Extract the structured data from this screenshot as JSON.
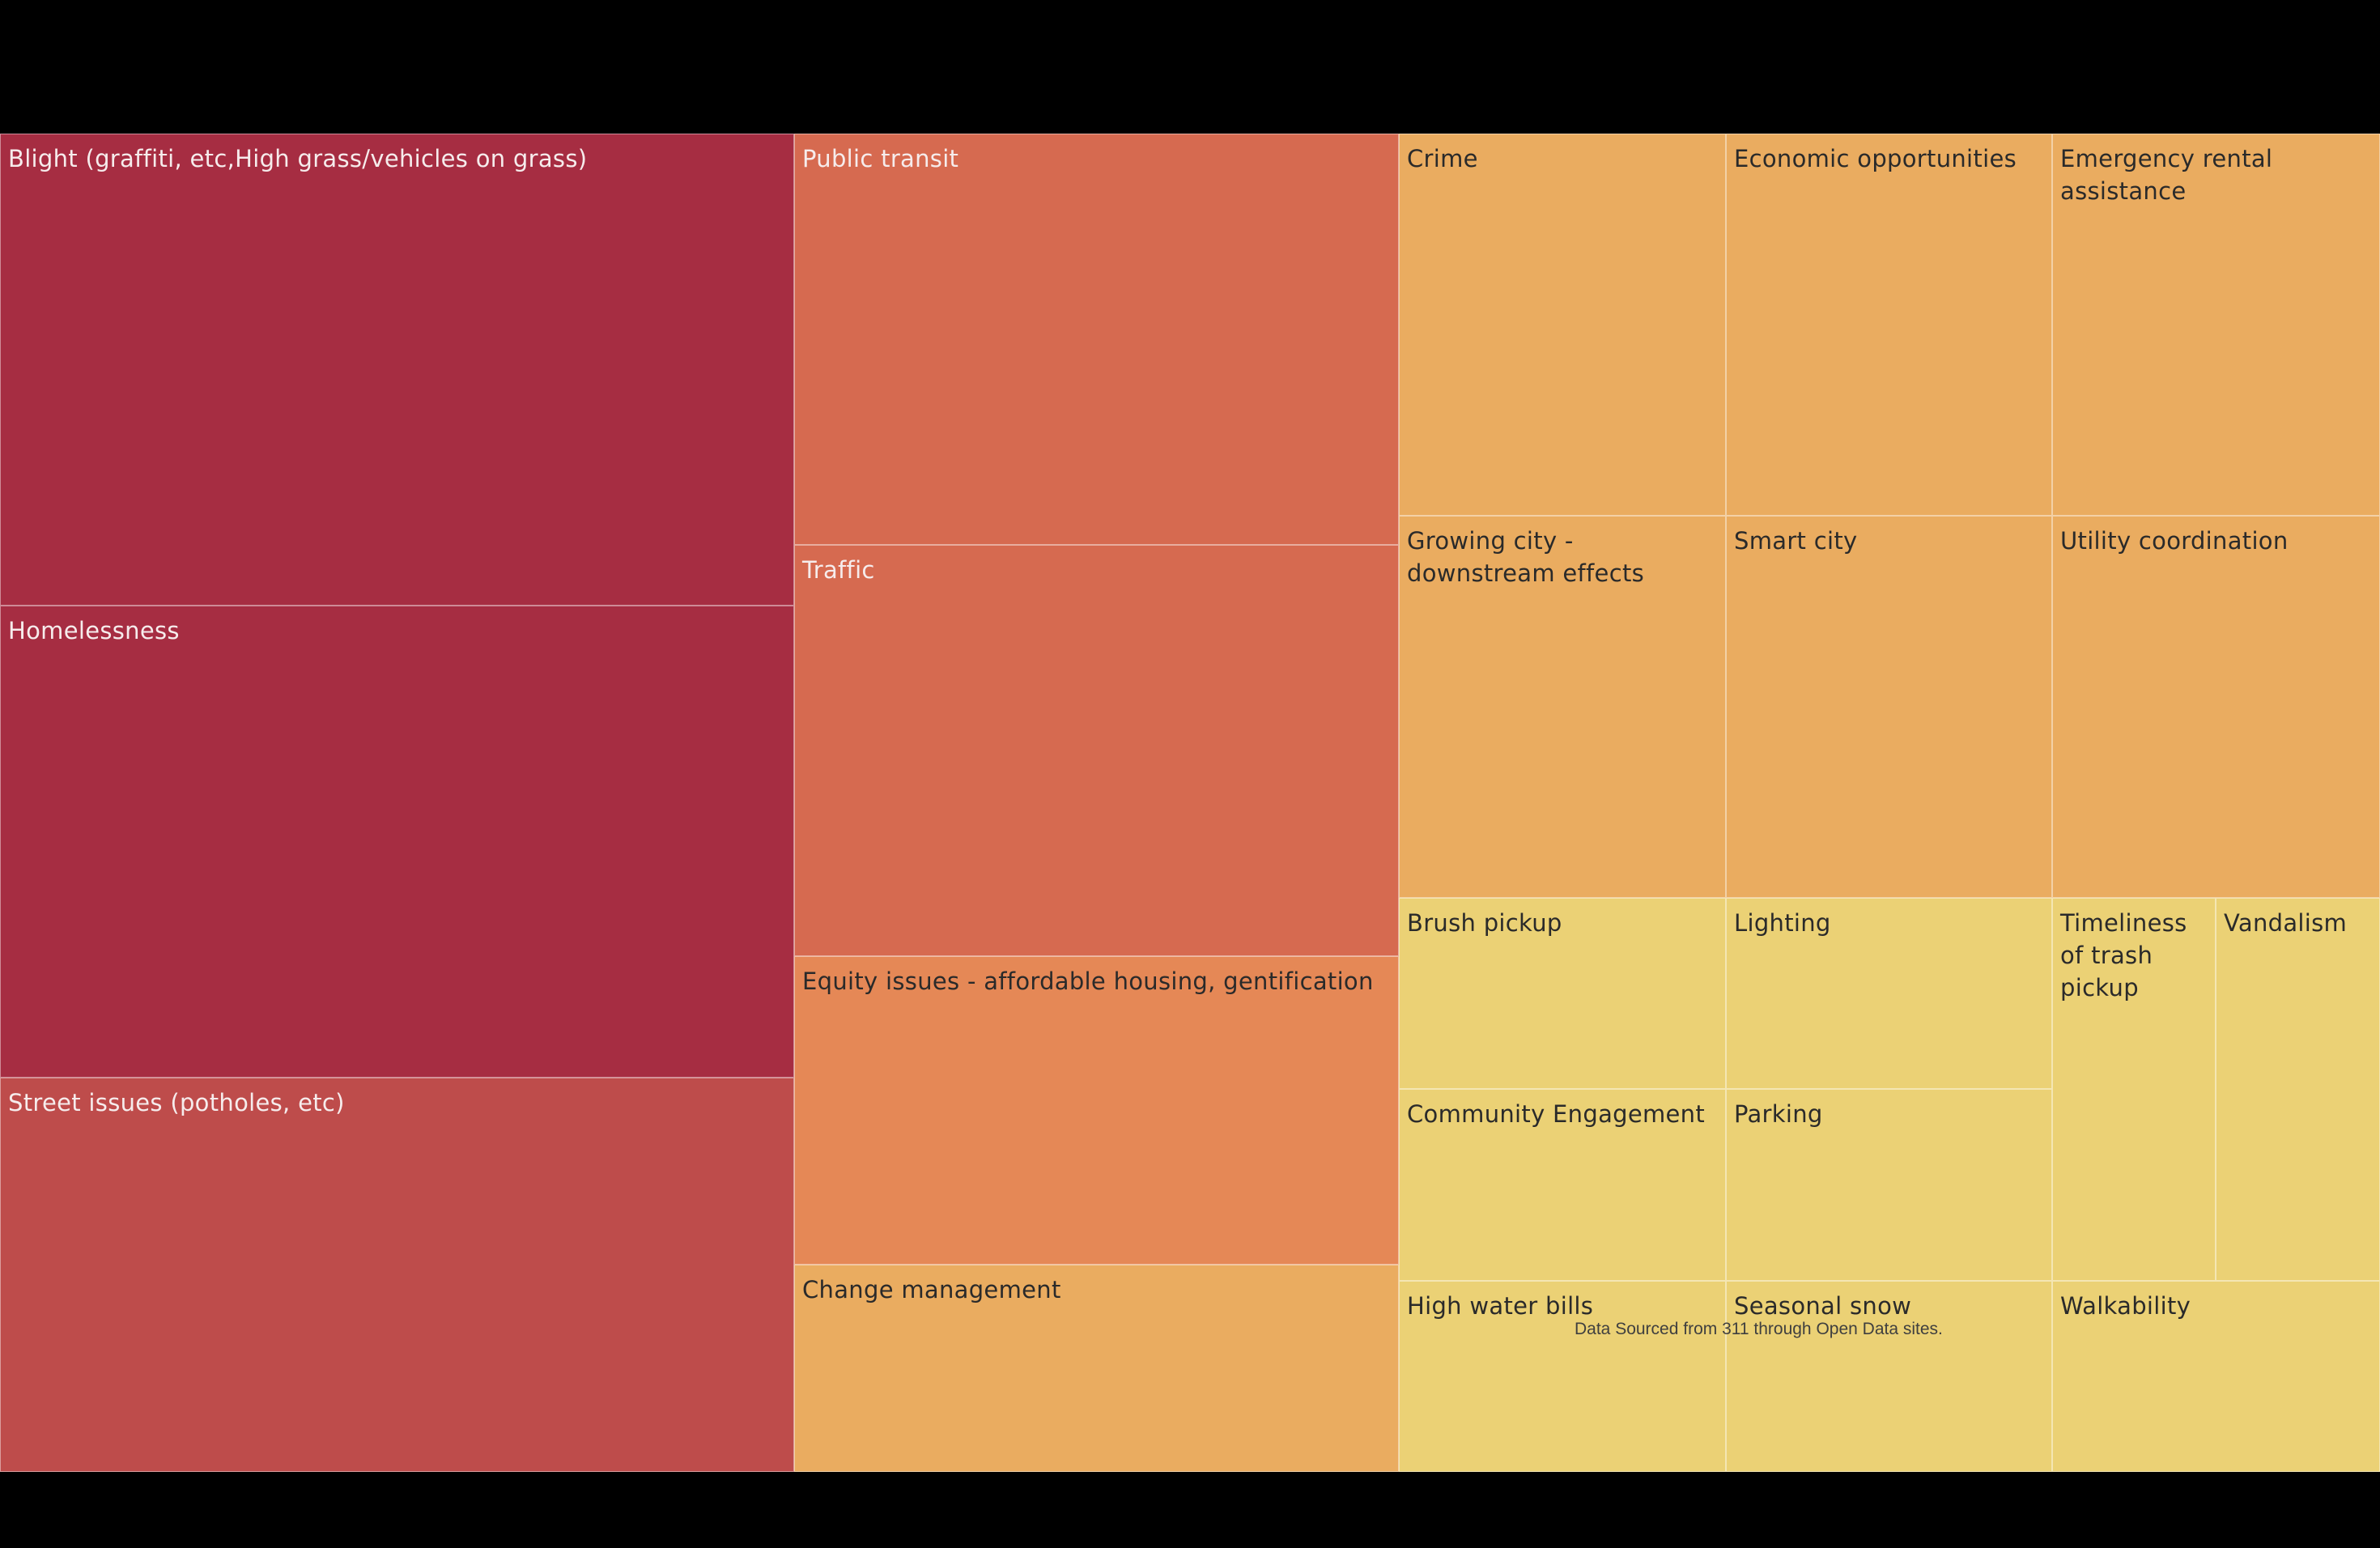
{
  "chart_data": {
    "type": "treemap",
    "tiles": [
      {
        "label": "Blight (graffiti, etc,High grass/vehicles on grass)",
        "value": 4,
        "color": "#a62d42"
      },
      {
        "label": "Homelessness",
        "value": 4,
        "color": "#a62d42"
      },
      {
        "label": "Street issues (potholes, etc)",
        "value": 3.3,
        "color": "#be4c4b"
      },
      {
        "label": "Public transit",
        "value": 2.6,
        "color": "#d66a50"
      },
      {
        "label": "Traffic",
        "value": 2.6,
        "color": "#d66a50"
      },
      {
        "label": "Equity issues - affordable housing, gentification",
        "value": 2,
        "color": "#e58856"
      },
      {
        "label": "Change management",
        "value": 1.3,
        "color": "#eaac60"
      },
      {
        "label": "Crime",
        "value": 1.3,
        "color": "#eaac60"
      },
      {
        "label": "Economic opportunities",
        "value": 1.3,
        "color": "#eaac60"
      },
      {
        "label": "Emergency rental assistance",
        "value": 1.3,
        "color": "#eaac60"
      },
      {
        "label": "Growing city - downstream effects",
        "value": 1.3,
        "color": "#eaac60"
      },
      {
        "label": "Smart city",
        "value": 1.3,
        "color": "#eaac60"
      },
      {
        "label": "Utility coordination",
        "value": 1.3,
        "color": "#eaac60"
      },
      {
        "label": "Brush pickup",
        "value": 0.65,
        "color": "#ebd175"
      },
      {
        "label": "Lighting",
        "value": 0.65,
        "color": "#ebd175"
      },
      {
        "label": "Community Engagement",
        "value": 0.65,
        "color": "#ebd175"
      },
      {
        "label": "Parking",
        "value": 0.65,
        "color": "#ebd175"
      },
      {
        "label": "Timeliness of trash pickup",
        "value": 0.65,
        "color": "#ebd175"
      },
      {
        "label": "Vandalism",
        "value": 0.65,
        "color": "#ebd175"
      },
      {
        "label": "High water bills",
        "value": 0.65,
        "color": "#ebd175"
      },
      {
        "label": "Seasonal snow",
        "value": 0.65,
        "color": "#ebd175"
      },
      {
        "label": "Walkability",
        "value": 0.65,
        "color": "#ebd175"
      }
    ],
    "annotation": "Data Sourced from 311 through Open Data sites."
  }
}
